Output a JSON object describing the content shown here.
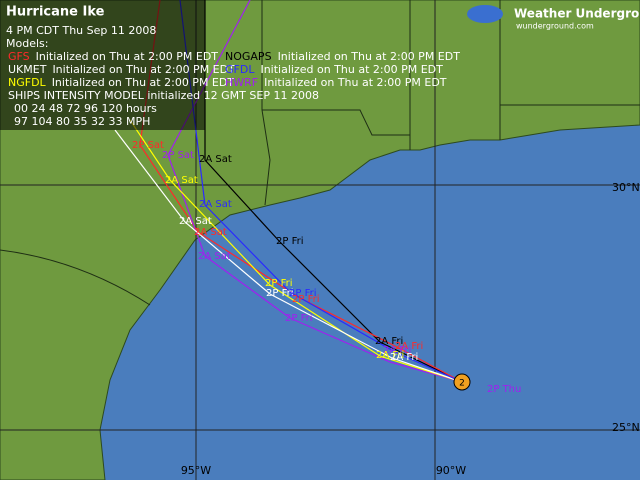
{
  "header": {
    "title": "Hurricane Ike",
    "timestamp": "4 PM CDT Thu Sep 11 2008",
    "models_label": "Models:"
  },
  "models": [
    {
      "name": "GFS",
      "init": "Initialized on Thu at 2:00 PM EDT",
      "color": "#ff2a2a"
    },
    {
      "name": "NOGAPS",
      "init": "Initialized on Thu at 2:00 PM EDT",
      "color": "#000000"
    },
    {
      "name": "UKMET",
      "init": "Initialized on Thu at 2:00 PM EDT",
      "color": "#ffffff"
    },
    {
      "name": "GFDL",
      "init": "Initialized on Thu at 2:00 PM EDT",
      "color": "#2a2aff"
    },
    {
      "name": "NGFDL",
      "init": "Initialized on Thu at 2:00 PM EDT",
      "color": "#ffff00"
    },
    {
      "name": "HWRF",
      "init": "Initialized on Thu at 2:00 PM EDT",
      "color": "#a020f0"
    }
  ],
  "ships": {
    "title": "SHIPS INTENSITY MODEL initialized 12 GMT SEP 11 2008",
    "hours": "00  24  48  72  96  120 hours",
    "speeds": "97  104  80  35  32  33   MPH"
  },
  "logo": {
    "name": "Weather Underground",
    "site": "wunderground.com"
  },
  "grid_labels": [
    "30°N",
    "25°N",
    "95°W",
    "90°W"
  ],
  "storm": {
    "category": "2"
  },
  "track_labels": [
    {
      "text": "2P Thu",
      "color": "#a020f0"
    },
    {
      "text": "2A Fri",
      "color": "#000000"
    },
    {
      "text": "2A Fri",
      "color": "#ff2a2a"
    },
    {
      "text": "2A Fri",
      "color": "#a020f0"
    },
    {
      "text": "2A Fri",
      "color": "#ffff00"
    },
    {
      "text": "2A Fri",
      "color": "#ffffff"
    },
    {
      "text": "2P Fri",
      "color": "#000000"
    },
    {
      "text": "2P Fri",
      "color": "#ffff00"
    },
    {
      "text": "2P Fri",
      "color": "#ffffff"
    },
    {
      "text": "2P Fri",
      "color": "#2a2aff"
    },
    {
      "text": "2P Fri",
      "color": "#ff2a2a"
    },
    {
      "text": "2P Fri",
      "color": "#a020f0"
    },
    {
      "text": "2A Sat",
      "color": "#000000"
    },
    {
      "text": "2A Sat",
      "color": "#ffff00"
    },
    {
      "text": "2A Sat",
      "color": "#2a2aff"
    },
    {
      "text": "2A Sat",
      "color": "#ffffff"
    },
    {
      "text": "2A Sat",
      "color": "#ff2a2a"
    },
    {
      "text": "2A Sat",
      "color": "#a020f0"
    },
    {
      "text": "2P Sat",
      "color": "#ff2a2a"
    },
    {
      "text": "2P Sat",
      "color": "#a020f0"
    }
  ]
}
